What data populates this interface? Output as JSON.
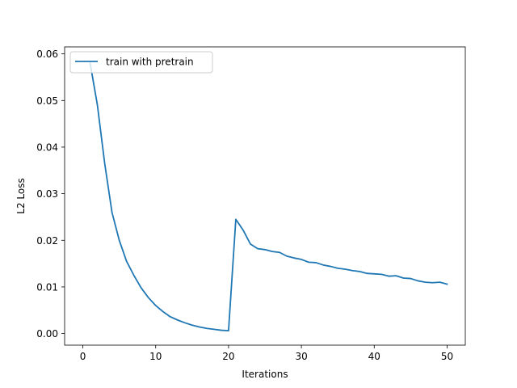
{
  "chart_data": {
    "type": "line",
    "xlabel": "Iterations",
    "ylabel": "L2 Loss",
    "xlim": [
      -2.5,
      52.5
    ],
    "ylim": [
      -0.0025,
      0.0615
    ],
    "xticks": [
      0,
      10,
      20,
      30,
      40,
      50
    ],
    "yticks": [
      0.0,
      0.01,
      0.02,
      0.03,
      0.04,
      0.05,
      0.06
    ],
    "xtick_labels": [
      "0",
      "10",
      "20",
      "30",
      "40",
      "50"
    ],
    "ytick_labels": [
      "0.00",
      "0.01",
      "0.02",
      "0.03",
      "0.04",
      "0.05",
      "0.06"
    ],
    "legend_position": "upper-left",
    "grid": false,
    "series": [
      {
        "name": "train with pretrain",
        "color": "#1f77b4",
        "x": [
          1,
          2,
          3,
          4,
          5,
          6,
          7,
          8,
          9,
          10,
          11,
          12,
          13,
          14,
          15,
          16,
          17,
          18,
          19,
          20,
          21,
          22,
          23,
          24,
          25,
          26,
          27,
          28,
          29,
          30,
          31,
          32,
          33,
          34,
          35,
          36,
          37,
          38,
          39,
          40,
          41,
          42,
          43,
          44,
          45,
          46,
          47,
          48,
          49,
          50
        ],
        "y": [
          0.058,
          0.049,
          0.0365,
          0.026,
          0.02,
          0.0155,
          0.0125,
          0.0098,
          0.0077,
          0.006,
          0.0047,
          0.0036,
          0.0029,
          0.0023,
          0.0018,
          0.0014,
          0.0011,
          0.0009,
          0.0007,
          0.0006,
          0.0245,
          0.0222,
          0.0192,
          0.0182,
          0.018,
          0.0176,
          0.0174,
          0.0166,
          0.0162,
          0.0159,
          0.0153,
          0.0152,
          0.0147,
          0.0144,
          0.014,
          0.0138,
          0.0135,
          0.0133,
          0.0129,
          0.0128,
          0.0127,
          0.0123,
          0.0124,
          0.0119,
          0.0118,
          0.0113,
          0.011,
          0.0109,
          0.011,
          0.0106
        ]
      }
    ]
  }
}
